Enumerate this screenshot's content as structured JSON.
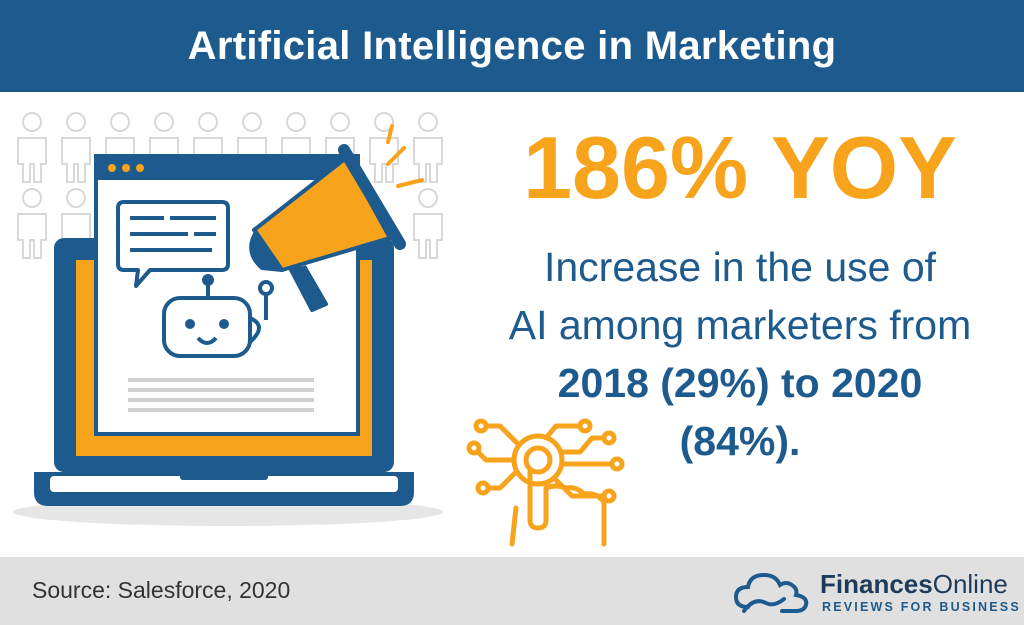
{
  "header": {
    "title": "Artificial Intelligence in Marketing"
  },
  "stat": {
    "value": "186% YOY"
  },
  "description": {
    "line1": "Increase in the use of",
    "line2": "AI among marketers from",
    "line3": "2018 (29%) to 2020",
    "line4": "(84%)."
  },
  "footer": {
    "source": "Source: Salesforce, 2020",
    "brand_bold": "Finances",
    "brand_light": "Online",
    "tagline": "REVIEWS FOR BUSINESS"
  },
  "colors": {
    "primary_blue": "#1d5a8e",
    "accent_orange": "#f7a31c",
    "footer_gray": "#e0e0e1"
  }
}
